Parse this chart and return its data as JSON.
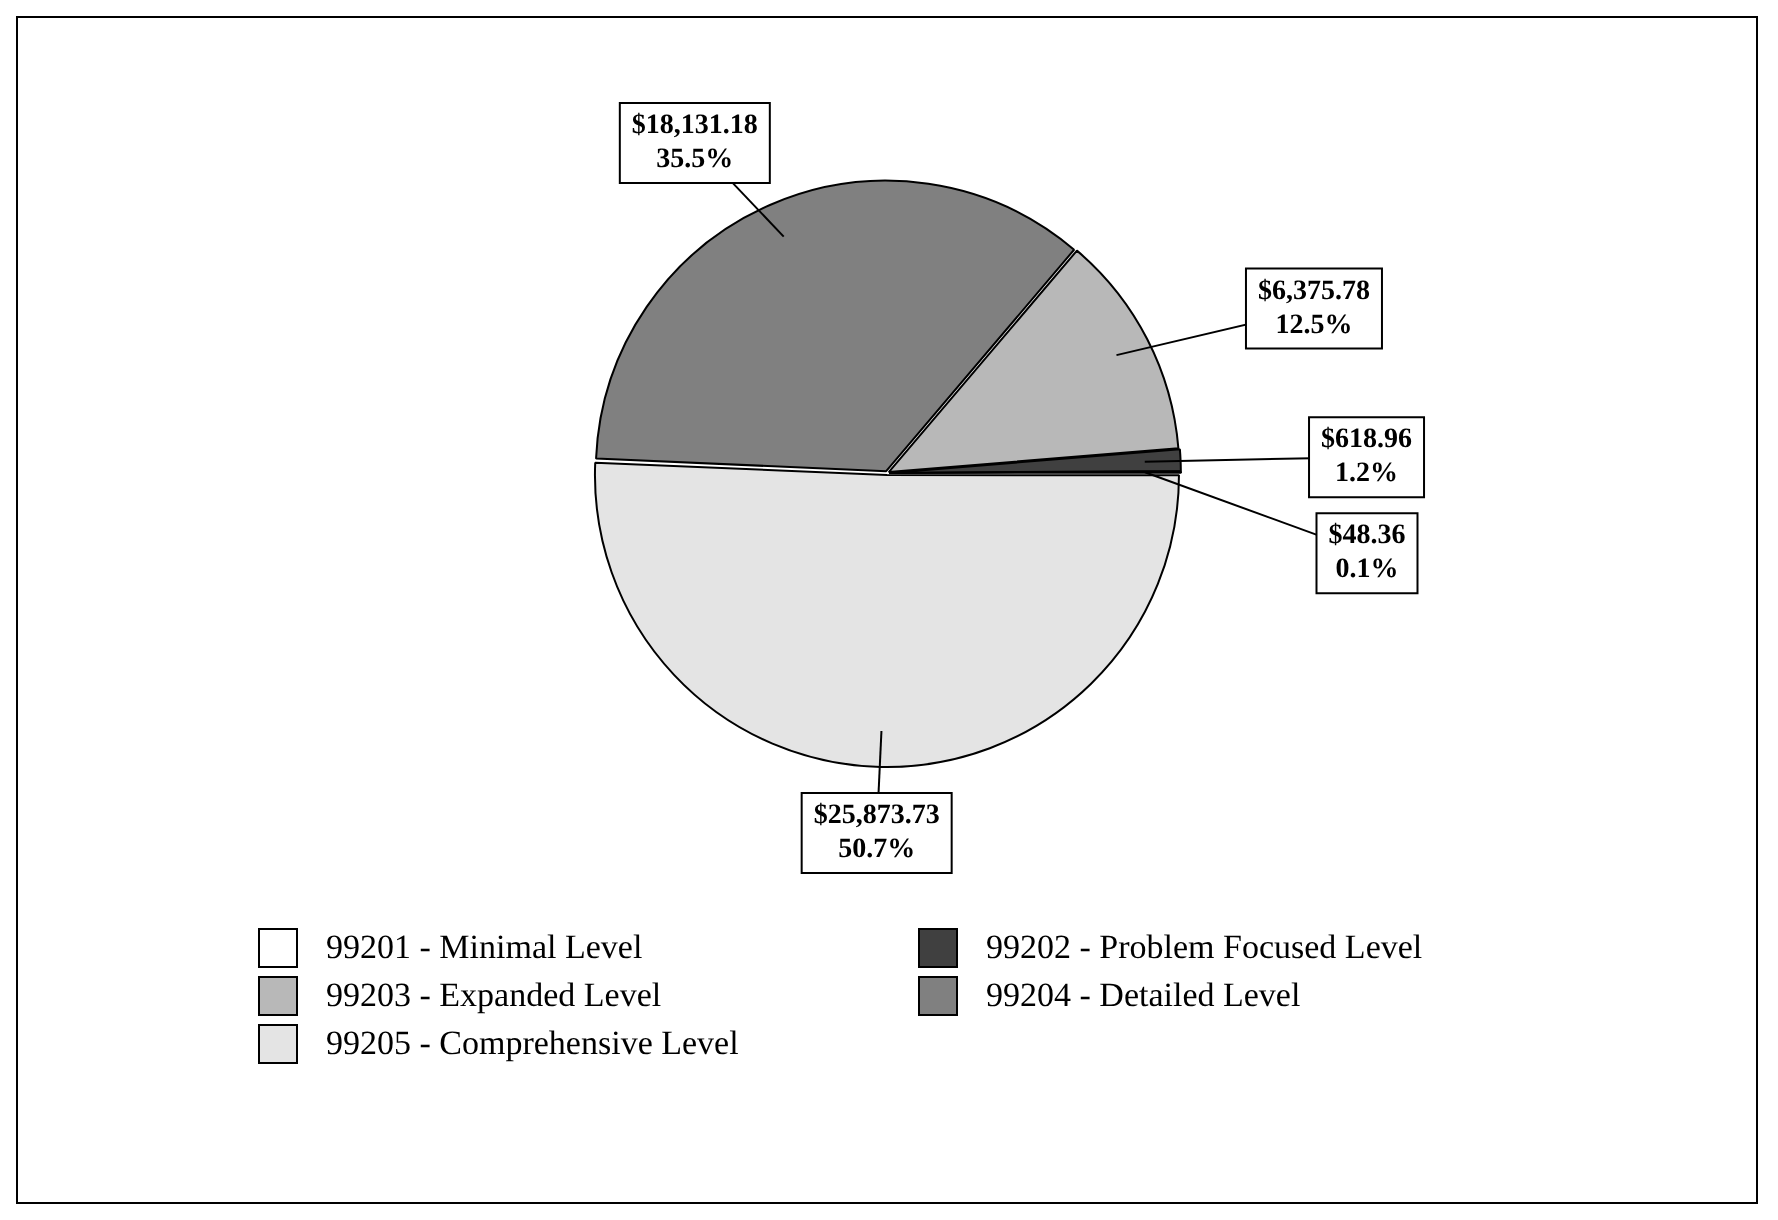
{
  "chart_data": {
    "type": "pie",
    "categories": [
      "99201 - Minimal Level",
      "99202 - Problem Focused Level",
      "99203 - Expanded Level",
      "99204 - Detailed Level",
      "99205 - Comprehensive Level"
    ],
    "values": [
      48.36,
      618.96,
      6375.78,
      18131.18,
      25873.73
    ],
    "value_labels": [
      "$48.36\n0.1%",
      "$618.96\n1.2%",
      "$6,375.78\n12.5%",
      "$18,131.18\n35.5%",
      "$25,873.73\n50.7%"
    ],
    "colors": [
      "#ffffff",
      "#404040",
      "#b8b8b8",
      "#808080",
      "#e4e4e4"
    ],
    "legend": "bottom"
  }
}
